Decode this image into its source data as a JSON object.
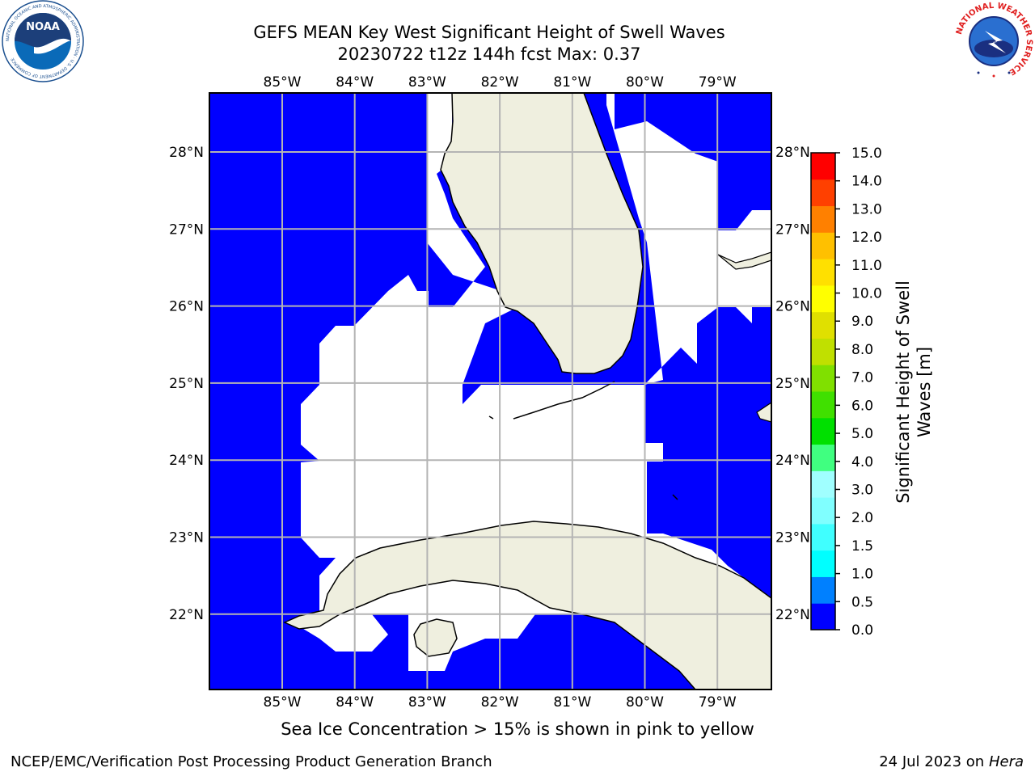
{
  "title_line1": "GEFS MEAN Key West Significant Height of Swell Waves",
  "title_line2": "20230722 t12z 144h fcst   Max: 0.37",
  "caption": "Sea Ice Concentration > 15% is shown in pink to yellow",
  "footer": {
    "left": "NCEP/EMC/Verification Post Processing Product Generation Branch",
    "date": "24 Jul 2023 on ",
    "host": "Hera"
  },
  "logos": {
    "noaa_text": "NOAA",
    "noaa_ring": "NATIONAL OCEANIC AND ATMOSPHERIC ADMINISTRATION · U.S. DEPARTMENT OF COMMERCE",
    "nws_ring": "NATIONAL WEATHER SERVICE"
  },
  "map": {
    "lon_ticks": [
      "85°W",
      "84°W",
      "83°W",
      "82°W",
      "81°W",
      "80°W",
      "79°W"
    ],
    "lat_ticks": [
      "28°N",
      "27°N",
      "26°N",
      "25°N",
      "24°N",
      "23°N",
      "22°N"
    ],
    "land_color": "#efefdf",
    "water_color": "#0000ff"
  },
  "colorbar": {
    "label": "Significant Height of Swell Waves [m]",
    "label_line1": "Significant Height of Swell",
    "label_line2": "Waves [m]",
    "ticks": [
      "15.0",
      "14.0",
      "13.0",
      "12.0",
      "11.0",
      "10.0",
      "9.0",
      "8.0",
      "7.0",
      "6.0",
      "5.0",
      "4.0",
      "3.0",
      "2.0",
      "1.5",
      "1.0",
      "0.5",
      "0.0"
    ],
    "colors": [
      "#0000ff",
      "#0080ff",
      "#00ffff",
      "#40ffff",
      "#80ffff",
      "#a0ffff",
      "#40ff80",
      "#00e000",
      "#40e000",
      "#80e000",
      "#c0e000",
      "#e0e000",
      "#ffff00",
      "#ffe000",
      "#ffc000",
      "#ff8000",
      "#ff4000",
      "#ff0000"
    ]
  }
}
